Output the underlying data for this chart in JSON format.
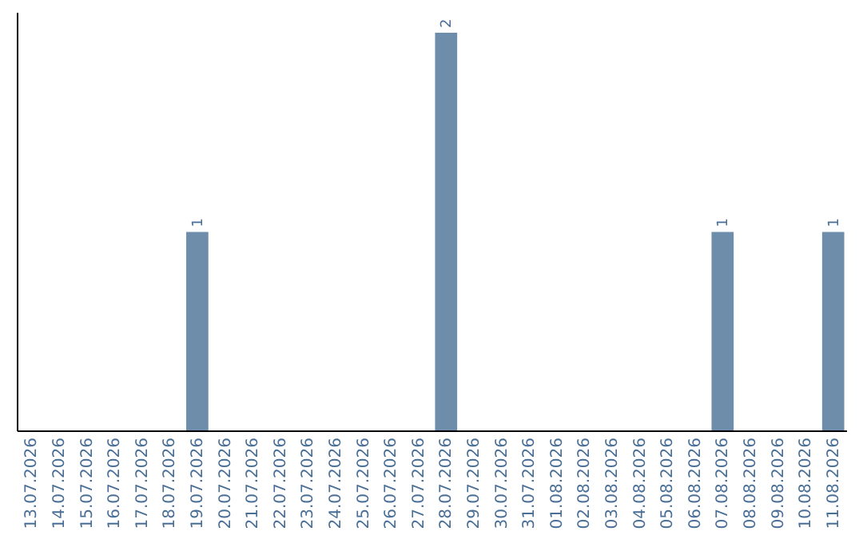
{
  "chart_data": {
    "type": "bar",
    "categories": [
      "13.07.2026",
      "14.07.2026",
      "15.07.2026",
      "16.07.2026",
      "17.07.2026",
      "18.07.2026",
      "19.07.2026",
      "20.07.2026",
      "21.07.2026",
      "22.07.2026",
      "23.07.2026",
      "24.07.2026",
      "25.07.2026",
      "26.07.2026",
      "27.07.2026",
      "28.07.2026",
      "29.07.2026",
      "30.07.2026",
      "31.07.2026",
      "01.08.2026",
      "02.08.2026",
      "03.08.2026",
      "04.08.2026",
      "05.08.2026",
      "06.08.2026",
      "07.08.2026",
      "08.08.2026",
      "09.08.2026",
      "10.08.2026",
      "11.08.2026"
    ],
    "values": [
      0,
      0,
      0,
      0,
      0,
      0,
      1,
      0,
      0,
      0,
      0,
      0,
      0,
      0,
      0,
      2,
      0,
      0,
      0,
      0,
      0,
      0,
      0,
      0,
      0,
      1,
      0,
      0,
      0,
      1
    ],
    "value_labels": [
      null,
      null,
      null,
      null,
      null,
      null,
      "1",
      null,
      null,
      null,
      null,
      null,
      null,
      null,
      null,
      "2",
      null,
      null,
      null,
      null,
      null,
      null,
      null,
      null,
      null,
      "1",
      null,
      null,
      null,
      "1"
    ],
    "color": "#6d8dab",
    "tick_labels": "x"
  }
}
